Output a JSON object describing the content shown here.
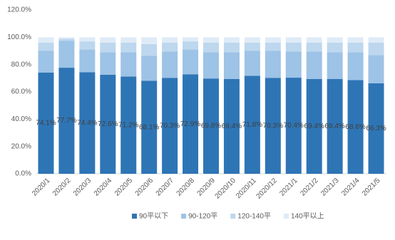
{
  "chart_data": {
    "type": "stacked_bar",
    "categories": [
      "2020/1",
      "2020/2",
      "2020/3",
      "2020/4",
      "2020/5",
      "2020/6",
      "2020/7",
      "2020/8",
      "2020/9",
      "2020/10",
      "2020/11",
      "2020/12",
      "2021/1",
      "2021/2",
      "2021/3",
      "2021/4",
      "2021/5"
    ],
    "series": [
      {
        "name": "90平以下",
        "color": "#2e75b6",
        "values": [
          74.1,
          77.7,
          74.4,
          72.6,
          71.2,
          68.1,
          70.3,
          72.9,
          69.8,
          69.4,
          71.8,
          70.3,
          70.4,
          69.4,
          69.4,
          68.6,
          66.3
        ],
        "value_labels": [
          "74.1%",
          "77.7%",
          "74.4%",
          "72.6%",
          "71.2%",
          "68.1%",
          "70.3%",
          "72.9%",
          "69.8%",
          "69.4%",
          "71.8%",
          "70.3%",
          "70.4%",
          "69.4%",
          "69.4%",
          "68.6%",
          "66.3%"
        ]
      },
      {
        "name": "90-120平",
        "color": "#9dc3e6",
        "values": [
          15.9,
          19.8,
          16.6,
          16.4,
          17.8,
          18.4,
          19.2,
          18.1,
          19.2,
          19.6,
          18.2,
          19.7,
          19.1,
          20.1,
          19.6,
          20.4,
          20.7
        ]
      },
      {
        "name": "120-140平",
        "color": "#bdd7ee",
        "values": [
          6,
          1.5,
          6,
          7,
          7,
          8.5,
          6.5,
          6,
          7,
          7,
          6,
          6,
          6.5,
          6.5,
          7,
          7,
          9
        ]
      },
      {
        "name": "140平以上",
        "color": "#deebf7",
        "values": [
          4,
          1,
          3,
          4,
          4,
          5,
          4,
          3,
          4,
          4,
          4,
          4,
          4,
          4,
          4,
          4,
          4
        ]
      }
    ],
    "ylim": [
      0,
      120
    ],
    "yticks": [
      {
        "value": 0,
        "label": "0.0%"
      },
      {
        "value": 20,
        "label": "20.0%"
      },
      {
        "value": 40,
        "label": "40.0%"
      },
      {
        "value": 60,
        "label": "60.0%"
      },
      {
        "value": 80,
        "label": "80.0%"
      },
      {
        "value": 100,
        "label": "100.0%"
      },
      {
        "value": 120,
        "label": "120.0%"
      }
    ],
    "legend": "bottom"
  }
}
